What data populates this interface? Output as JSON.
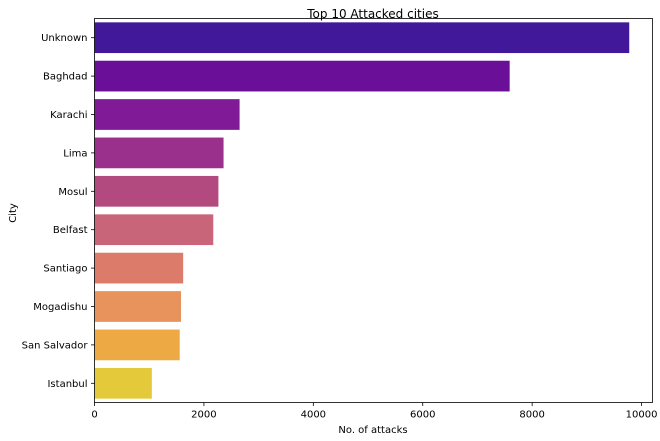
{
  "chart_data": {
    "type": "bar",
    "orientation": "horizontal",
    "title": "Top 10 Attacked cities",
    "xlabel": "No. of attacks",
    "ylabel": "City",
    "xlim": [
      0,
      10200
    ],
    "x_ticks": [
      0,
      2000,
      4000,
      6000,
      8000,
      10000
    ],
    "x_tick_labels": [
      "0",
      "2000",
      "4000",
      "6000",
      "8000",
      "10000"
    ],
    "grid": false,
    "legend": "none",
    "categories": [
      "Unknown",
      "Baghdad",
      "Karachi",
      "Lima",
      "Mosul",
      "Belfast",
      "Santiago",
      "Mogadishu",
      "San Salvador",
      "Istanbul"
    ],
    "values": [
      9775,
      7589,
      2652,
      2359,
      2265,
      2171,
      1621,
      1581,
      1558,
      1048
    ],
    "colors": [
      "#41189a",
      "#6a0f98",
      "#801a96",
      "#9b2f8c",
      "#b24a7f",
      "#c96578",
      "#dd7b6a",
      "#e8925c",
      "#edaa44",
      "#e4ca3a"
    ]
  }
}
